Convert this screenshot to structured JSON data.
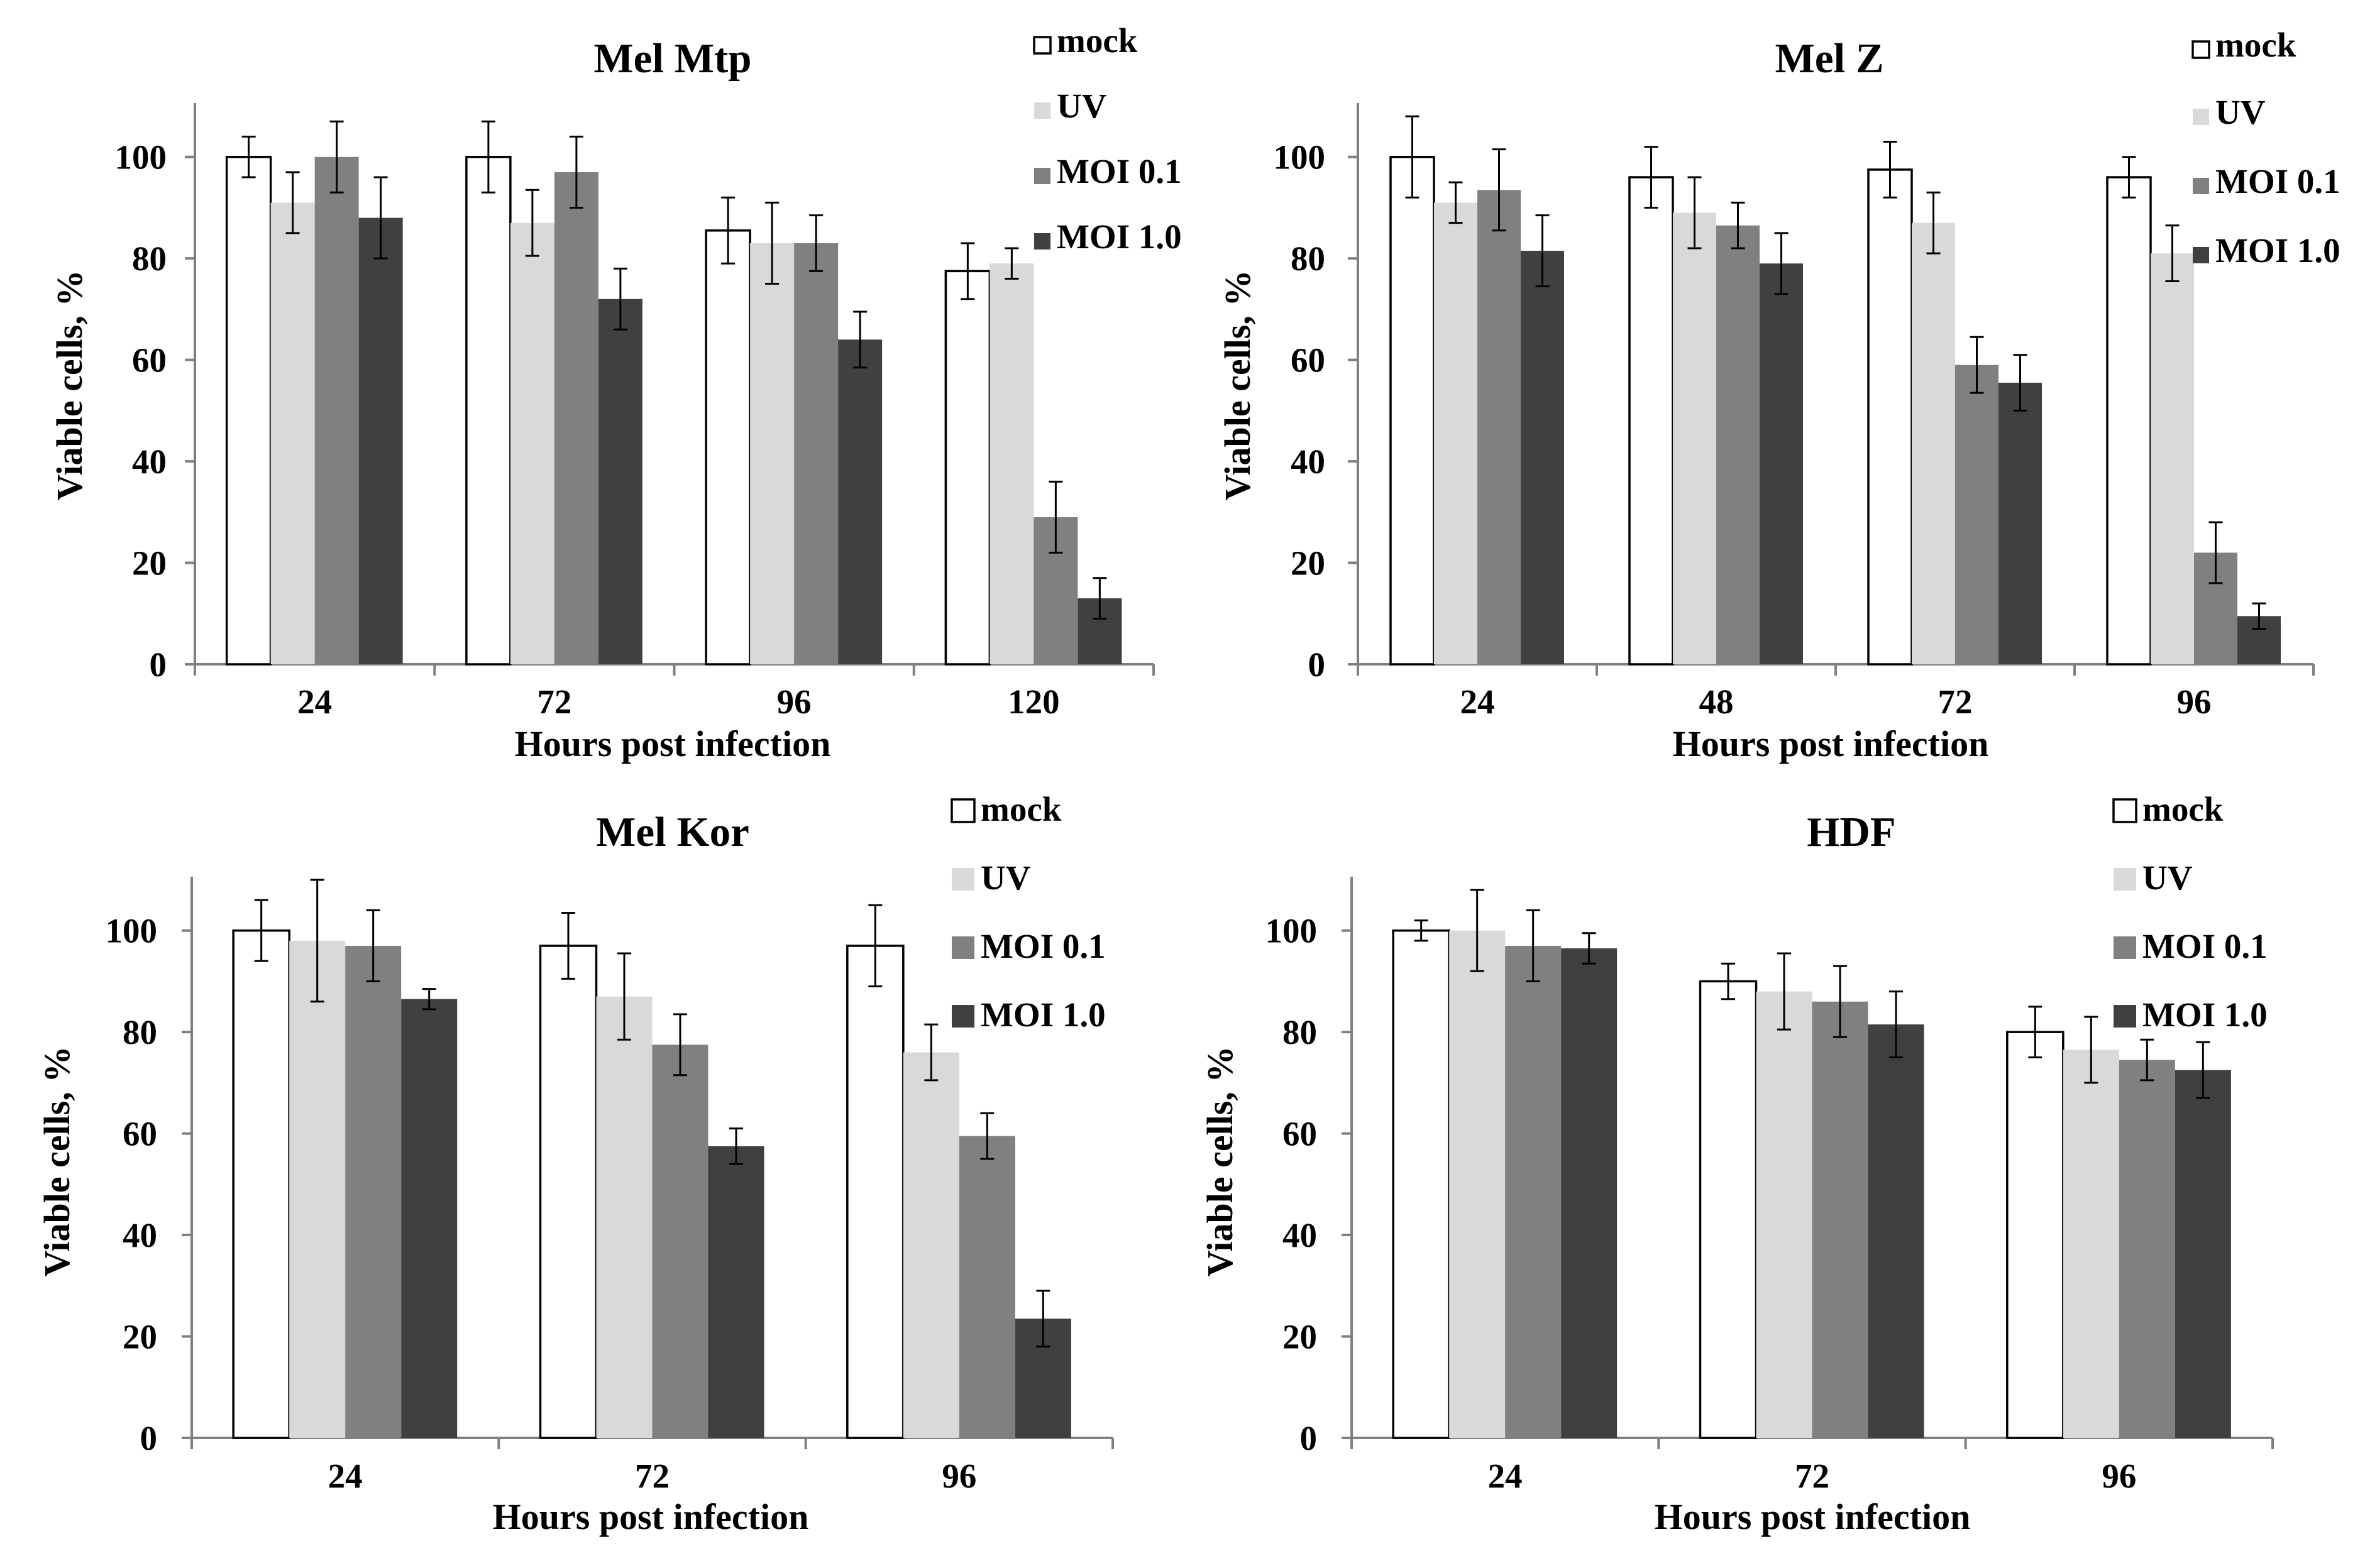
{
  "colors": {
    "mock": "#ffffff",
    "UV": "#d9d9d9",
    "MOI 0.1": "#808080",
    "MOI 1.0": "#404040",
    "axis": "#7f7f7f",
    "outline": "#000000"
  },
  "chart_data": [
    {
      "type": "bar",
      "title": "Mel Mtp",
      "xlabel": "Hours post infection",
      "ylabel": "Viable cells, %",
      "ylim": [
        0,
        110
      ],
      "yticks": [
        "0",
        "20",
        "40",
        "60",
        "80",
        "100"
      ],
      "grid": false,
      "legend": "top-right",
      "categories": [
        "24",
        "72",
        "96",
        "120"
      ],
      "series": [
        {
          "name": "mock",
          "values": [
            100,
            100,
            85.5,
            77.5
          ],
          "errors": [
            4,
            7,
            6.5,
            5.5
          ]
        },
        {
          "name": "UV",
          "values": [
            91,
            87,
            83,
            79
          ],
          "errors": [
            6,
            6.5,
            8,
            3
          ]
        },
        {
          "name": "MOI 0.1",
          "values": [
            100,
            97,
            83,
            29
          ],
          "errors": [
            7,
            7,
            5.5,
            7
          ]
        },
        {
          "name": "MOI 1.0",
          "values": [
            88,
            72,
            64,
            13
          ],
          "errors": [
            8,
            6,
            5.5,
            4
          ]
        }
      ]
    },
    {
      "type": "bar",
      "title": "Mel Z",
      "xlabel": "Hours post infection",
      "ylabel": "Viable cells, %",
      "ylim": [
        0,
        110
      ],
      "yticks": [
        "0",
        "20",
        "40",
        "60",
        "80",
        "100"
      ],
      "grid": false,
      "legend": "top-right",
      "categories": [
        "24",
        "48",
        "72",
        "96"
      ],
      "series": [
        {
          "name": "mock",
          "values": [
            100,
            96,
            97.5,
            96
          ],
          "errors": [
            8,
            6,
            5.5,
            4
          ]
        },
        {
          "name": "UV",
          "values": [
            91,
            89,
            87,
            81
          ],
          "errors": [
            4,
            7,
            6,
            5.5
          ]
        },
        {
          "name": "MOI 0.1",
          "values": [
            93.5,
            86.5,
            59,
            22
          ],
          "errors": [
            8,
            4.5,
            5.5,
            6
          ]
        },
        {
          "name": "MOI 1.0",
          "values": [
            81.5,
            79,
            55.5,
            9.5
          ],
          "errors": [
            7,
            6,
            5.5,
            2.5
          ]
        }
      ]
    },
    {
      "type": "bar",
      "title": "Mel Kor",
      "xlabel": "Hours post infection",
      "ylabel": "Viable cells, %",
      "ylim": [
        0,
        110
      ],
      "yticks": [
        "0",
        "20",
        "40",
        "60",
        "80",
        "100"
      ],
      "grid": false,
      "legend": "top-right",
      "categories": [
        "24",
        "72",
        "96"
      ],
      "series": [
        {
          "name": "mock",
          "values": [
            100,
            97,
            97
          ],
          "errors": [
            6,
            6.5,
            8
          ]
        },
        {
          "name": "UV",
          "values": [
            98,
            87,
            76
          ],
          "errors": [
            12,
            8.5,
            5.5
          ]
        },
        {
          "name": "MOI 0.1",
          "values": [
            97,
            77.5,
            59.5
          ],
          "errors": [
            7,
            6,
            4.5
          ]
        },
        {
          "name": "MOI 1.0",
          "values": [
            86.5,
            57.5,
            23.5
          ],
          "errors": [
            2,
            3.5,
            5.5
          ]
        }
      ]
    },
    {
      "type": "bar",
      "title": "HDF",
      "xlabel": "Hours post infection",
      "ylabel": "Viable cells, %",
      "ylim": [
        0,
        110
      ],
      "yticks": [
        "0",
        "20",
        "40",
        "60",
        "80",
        "100"
      ],
      "grid": false,
      "legend": "top-right",
      "categories": [
        "24",
        "72",
        "96"
      ],
      "series": [
        {
          "name": "mock",
          "values": [
            100,
            90,
            80
          ],
          "errors": [
            2,
            3.5,
            5
          ]
        },
        {
          "name": "UV",
          "values": [
            100,
            88,
            76.5
          ],
          "errors": [
            8,
            7.5,
            6.5
          ]
        },
        {
          "name": "MOI 0.1",
          "values": [
            97,
            86,
            74.5
          ],
          "errors": [
            7,
            7,
            4
          ]
        },
        {
          "name": "MOI 1.0",
          "values": [
            96.5,
            81.5,
            72.5
          ],
          "errors": [
            3,
            6.5,
            5.5
          ]
        }
      ]
    }
  ]
}
